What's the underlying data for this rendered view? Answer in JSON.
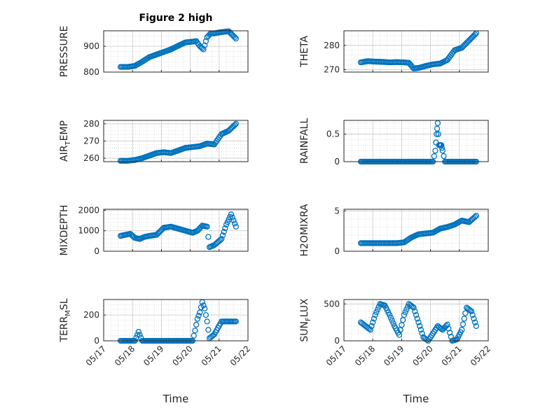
{
  "figure": {
    "title": "Figure 2 high",
    "xlabel": "Time",
    "marker_color": "#0072BD"
  },
  "chart_data": [
    {
      "type": "scatter",
      "ylabel": "PRESSURE",
      "xlim": [
        "05/17",
        "05/22"
      ],
      "ylim": [
        800,
        960
      ],
      "yticks": [
        800,
        900
      ],
      "grid": true,
      "x": [
        "05/17 14:00",
        "05/17 20:00",
        "05/18 02:00",
        "05/18 08:00",
        "05/18 14:00",
        "05/18 20:00",
        "05/19 02:00",
        "05/19 08:00",
        "05/19 14:00",
        "05/19 20:00",
        "05/20 02:00",
        "05/20 05:00",
        "05/20 08:00",
        "05/20 11:00",
        "05/20 14:00",
        "05/20 17:00",
        "05/20 20:00",
        "05/21 02:00",
        "05/21 08:00",
        "05/21 14:00"
      ],
      "y": [
        820,
        820,
        824,
        840,
        858,
        868,
        878,
        888,
        902,
        915,
        918,
        920,
        900,
        888,
        935,
        950,
        950,
        955,
        958,
        930
      ]
    },
    {
      "type": "scatter",
      "ylabel": "THETA",
      "xlim": [
        "05/17",
        "05/22"
      ],
      "ylim": [
        269,
        286
      ],
      "yticks": [
        270,
        280
      ],
      "grid": true,
      "x": [
        "05/17 14:00",
        "05/17 20:00",
        "05/18 02:00",
        "05/18 08:00",
        "05/18 14:00",
        "05/18 20:00",
        "05/19 02:00",
        "05/19 06:00",
        "05/19 10:00",
        "05/19 14:00",
        "05/19 20:00",
        "05/20 02:00",
        "05/20 08:00",
        "05/20 14:00",
        "05/20 20:00",
        "05/21 02:00",
        "05/21 08:00",
        "05/21 14:00"
      ],
      "y": [
        273,
        273.5,
        273.3,
        273.2,
        273,
        273.1,
        273,
        272.8,
        270.5,
        270.7,
        271.5,
        272.2,
        272.5,
        274,
        278,
        279,
        282,
        285
      ]
    },
    {
      "type": "scatter",
      "ylabel": "AIR_TEMP",
      "xlim": [
        "05/17",
        "05/22"
      ],
      "ylim": [
        258,
        282
      ],
      "yticks": [
        260,
        270,
        280
      ],
      "grid": true,
      "x": [
        "05/17 14:00",
        "05/17 20:00",
        "05/18 02:00",
        "05/18 08:00",
        "05/18 14:00",
        "05/18 20:00",
        "05/19 02:00",
        "05/19 08:00",
        "05/19 14:00",
        "05/19 20:00",
        "05/20 02:00",
        "05/20 08:00",
        "05/20 14:00",
        "05/20 20:00",
        "05/21 02:00",
        "05/21 08:00",
        "05/21 14:00"
      ],
      "y": [
        258.5,
        258.5,
        259,
        260,
        261.5,
        263,
        263.5,
        263,
        264.5,
        266,
        266.5,
        267,
        268.5,
        268,
        274,
        276,
        280
      ]
    },
    {
      "type": "scatter",
      "ylabel": "RAINFALL",
      "xlim": [
        "05/17",
        "05/22"
      ],
      "ylim": [
        0,
        0.75
      ],
      "yticks": [
        0,
        0.5
      ],
      "grid": true,
      "x": [
        "05/17 14:00",
        "05/17 20:00",
        "05/18 02:00",
        "05/18 08:00",
        "05/18 14:00",
        "05/18 20:00",
        "05/19 02:00",
        "05/19 08:00",
        "05/19 14:00",
        "05/19 20:00",
        "05/20 02:00",
        "05/20 04:00",
        "05/20 05:00",
        "05/20 06:00",
        "05/20 07:00",
        "05/20 08:00",
        "05/20 09:00",
        "05/20 10:00",
        "05/20 12:00",
        "05/20 14:00",
        "05/20 20:00",
        "05/21 02:00",
        "05/21 08:00",
        "05/21 14:00"
      ],
      "y": [
        0,
        0,
        0,
        0,
        0,
        0,
        0,
        0,
        0,
        0,
        0,
        0.2,
        0.5,
        0.7,
        0.3,
        0.3,
        0.3,
        0.2,
        0,
        0,
        0,
        0,
        0,
        0
      ]
    },
    {
      "type": "scatter",
      "ylabel": "MIXDEPTH",
      "xlim": [
        "05/17",
        "05/22"
      ],
      "ylim": [
        0,
        2050
      ],
      "yticks": [
        0,
        1000,
        2000
      ],
      "grid": true,
      "x": [
        "05/17 14:00",
        "05/17 18:00",
        "05/17 22:00",
        "05/18 02:00",
        "05/18 06:00",
        "05/18 10:00",
        "05/18 14:00",
        "05/18 20:00",
        "05/19 02:00",
        "05/19 08:00",
        "05/19 14:00",
        "05/19 20:00",
        "05/20 02:00",
        "05/20 06:00",
        "05/20 10:00",
        "05/20 14:00",
        "05/20 16:00",
        "05/20 20:00",
        "05/21 02:00",
        "05/21 06:00",
        "05/21 10:00",
        "05/21 14:00"
      ],
      "y": [
        750,
        800,
        850,
        650,
        600,
        700,
        750,
        800,
        1150,
        1200,
        1100,
        1000,
        900,
        1000,
        1250,
        1200,
        200,
        300,
        600,
        1300,
        1800,
        1200
      ]
    },
    {
      "type": "scatter",
      "ylabel": "H2OMIXRA",
      "xlim": [
        "05/17",
        "05/22"
      ],
      "ylim": [
        0,
        5.2
      ],
      "yticks": [
        0,
        5
      ],
      "grid": true,
      "x": [
        "05/17 14:00",
        "05/17 20:00",
        "05/18 02:00",
        "05/18 08:00",
        "05/18 14:00",
        "05/18 20:00",
        "05/19 02:00",
        "05/19 08:00",
        "05/19 14:00",
        "05/19 20:00",
        "05/20 02:00",
        "05/20 08:00",
        "05/20 14:00",
        "05/20 20:00",
        "05/21 02:00",
        "05/21 08:00",
        "05/21 14:00"
      ],
      "y": [
        1,
        1,
        1,
        1,
        1,
        1,
        1.1,
        1.7,
        2.1,
        2.2,
        2.3,
        2.8,
        3,
        3.3,
        3.8,
        3.6,
        4.4
      ]
    },
    {
      "type": "scatter",
      "ylabel": "TERR_MSL",
      "xlim": [
        "05/17",
        "05/22"
      ],
      "ylim": [
        0,
        320
      ],
      "yticks": [
        0,
        200
      ],
      "grid": true,
      "x": [
        "05/17 14:00",
        "05/17 20:00",
        "05/18 02:00",
        "05/18 05:00",
        "05/18 08:00",
        "05/18 14:00",
        "05/18 20:00",
        "05/19 02:00",
        "05/19 08:00",
        "05/19 14:00",
        "05/19 20:00",
        "05/20 02:00",
        "05/20 04:00",
        "05/20 06:00",
        "05/20 08:00",
        "05/20 10:00",
        "05/20 12:00",
        "05/20 14:00",
        "05/20 16:00",
        "05/20 20:00",
        "05/21 02:00",
        "05/21 08:00",
        "05/21 14:00"
      ],
      "y": [
        0,
        0,
        0,
        70,
        0,
        0,
        0,
        0,
        0,
        0,
        0,
        0,
        80,
        170,
        220,
        300,
        250,
        150,
        20,
        50,
        150,
        150,
        150
      ]
    },
    {
      "type": "scatter",
      "ylabel": "SUN_FLUX",
      "xlim": [
        "05/17",
        "05/22"
      ],
      "ylim": [
        0,
        560
      ],
      "yticks": [
        0,
        500
      ],
      "grid": true,
      "x": [
        "05/17 14:00",
        "05/17 18:00",
        "05/17 22:00",
        "05/18 02:00",
        "05/18 06:00",
        "05/18 10:00",
        "05/18 14:00",
        "05/18 18:00",
        "05/18 22:00",
        "05/19 02:00",
        "05/19 06:00",
        "05/19 10:00",
        "05/19 14:00",
        "05/19 18:00",
        "05/19 22:00",
        "05/20 02:00",
        "05/20 06:00",
        "05/20 10:00",
        "05/20 14:00",
        "05/20 18:00",
        "05/20 22:00",
        "05/21 02:00",
        "05/21 06:00",
        "05/21 10:00",
        "05/21 14:00"
      ],
      "y": [
        250,
        200,
        150,
        350,
        500,
        480,
        350,
        200,
        80,
        350,
        500,
        450,
        250,
        50,
        0,
        100,
        200,
        150,
        220,
        0,
        20,
        150,
        450,
        400,
        200
      ]
    }
  ]
}
